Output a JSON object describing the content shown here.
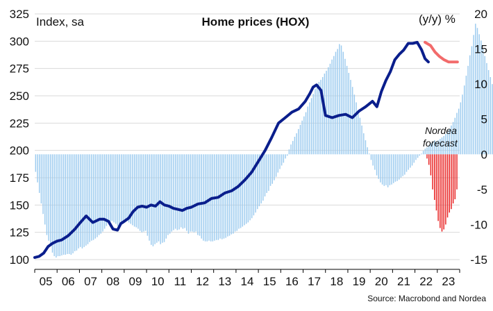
{
  "chart_data": {
    "type": "bar+line",
    "title": "Home prices (HOX)",
    "left_axis_label": "Index, sa",
    "right_axis_label": "(y/y) %",
    "annotation": "Nordea\nforecast",
    "source": "Source: Macrobond and Nordea",
    "left_ylim": [
      100,
      325
    ],
    "left_ticks": [
      "100",
      "125",
      "150",
      "175",
      "200",
      "225",
      "250",
      "275",
      "300",
      "325"
    ],
    "right_ylim": [
      -15,
      20
    ],
    "right_ticks": [
      "-15",
      "-10",
      "-5",
      "0",
      "5",
      "10",
      "15",
      "20"
    ],
    "x_ticks": [
      "05",
      "06",
      "07",
      "08",
      "09",
      "10",
      "11",
      "12",
      "13",
      "14",
      "15",
      "16",
      "17",
      "18",
      "19",
      "20",
      "21",
      "22",
      "23"
    ],
    "x_range": [
      2005.0,
      2024.0
    ],
    "grid": "horizontal",
    "colors": {
      "index_line": "#0a1e8c",
      "forecast_line": "#f26b6b",
      "yoy_bars": "#9ccbef",
      "forecast_bars": "#e81f1f"
    },
    "series": [
      {
        "name": "Index, sa",
        "axis": "left",
        "kind": "line",
        "x": [
          2005.0,
          2005.2,
          2005.4,
          2005.6,
          2005.8,
          2006.0,
          2006.2,
          2006.5,
          2006.8,
          2007.0,
          2007.3,
          2007.6,
          2007.9,
          2008.1,
          2008.3,
          2008.5,
          2008.7,
          2008.85,
          2009.0,
          2009.2,
          2009.4,
          2009.6,
          2009.8,
          2010.0,
          2010.2,
          2010.4,
          2010.6,
          2010.8,
          2011.0,
          2011.2,
          2011.4,
          2011.6,
          2011.8,
          2012.0,
          2012.3,
          2012.6,
          2012.9,
          2013.2,
          2013.5,
          2013.8,
          2014.1,
          2014.4,
          2014.7,
          2015.0,
          2015.3,
          2015.6,
          2015.9,
          2016.2,
          2016.5,
          2016.8,
          2017.1,
          2017.3,
          2017.45,
          2017.6,
          2017.8,
          2018.0,
          2018.3,
          2018.6,
          2018.9,
          2019.2,
          2019.5,
          2019.8,
          2020.1,
          2020.3,
          2020.5,
          2020.7,
          2020.9,
          2021.1,
          2021.3,
          2021.5,
          2021.7,
          2021.9,
          2022.1,
          2022.3,
          2022.45,
          2022.6
        ],
        "values": [
          102,
          103,
          106,
          112,
          115,
          117,
          118,
          122,
          128,
          133,
          140,
          134,
          137,
          137,
          135,
          128,
          127,
          133,
          135,
          138,
          144,
          148,
          149,
          148,
          150,
          149,
          153,
          150,
          149,
          147,
          146,
          145,
          147,
          148,
          151,
          152,
          156,
          157,
          161,
          163,
          167,
          173,
          180,
          190,
          200,
          212,
          225,
          230,
          235,
          238,
          245,
          252,
          258,
          260,
          255,
          232,
          230,
          232,
          233,
          230,
          236,
          240,
          245,
          240,
          254,
          264,
          272,
          283,
          288,
          292,
          298,
          298,
          299,
          292,
          284,
          281
        ]
      },
      {
        "name": "Index forecast",
        "axis": "left",
        "kind": "line",
        "x": [
          2022.45,
          2022.7,
          2022.9,
          2023.1,
          2023.3,
          2023.5,
          2023.7,
          2023.9
        ],
        "values": [
          299,
          296,
          290,
          286,
          283,
          281,
          281,
          281
        ]
      },
      {
        "name": "(y/y) %",
        "axis": "right",
        "kind": "bars",
        "x_start": 2005.0,
        "x_step": 0.0833333,
        "values": [
          -2.5,
          -4.0,
          -5.5,
          -7.0,
          -8.5,
          -10.0,
          -11.5,
          -12.3,
          -13.0,
          -14.0,
          -14.5,
          -14.7,
          -14.5,
          -14.5,
          -14.4,
          -14.3,
          -14.3,
          -14.2,
          -14.2,
          -14.3,
          -14.1,
          -13.8,
          -13.7,
          -13.4,
          -13.2,
          -13.4,
          -13.2,
          -13.0,
          -12.8,
          -12.5,
          -12.3,
          -12.2,
          -12.0,
          -11.8,
          -11.5,
          -11.3,
          -11.0,
          -10.6,
          -10.2,
          -9.8,
          -9.6,
          -9.5,
          -9.7,
          -9.9,
          -10.2,
          -10.0,
          -9.8,
          -9.9,
          -9.7,
          -9.5,
          -9.7,
          -9.9,
          -10.1,
          -10.3,
          -10.4,
          -10.6,
          -10.9,
          -11.1,
          -11.0,
          -10.9,
          -11.6,
          -12.3,
          -12.9,
          -13.1,
          -12.8,
          -12.6,
          -12.4,
          -12.8,
          -12.6,
          -12.5,
          -12.0,
          -11.5,
          -11.3,
          -11.0,
          -10.8,
          -10.6,
          -10.8,
          -10.7,
          -10.4,
          -10.6,
          -10.5,
          -10.9,
          -11.3,
          -11.0,
          -11.0,
          -11.1,
          -11.0,
          -11.5,
          -11.6,
          -12.0,
          -12.3,
          -12.4,
          -12.4,
          -12.3,
          -12.4,
          -12.4,
          -12.3,
          -12.2,
          -12.2,
          -12.0,
          -12.1,
          -12.0,
          -11.9,
          -11.7,
          -11.6,
          -11.4,
          -11.3,
          -11.0,
          -10.9,
          -10.6,
          -10.5,
          -10.3,
          -10.1,
          -9.9,
          -9.7,
          -9.4,
          -9.1,
          -8.7,
          -8.3,
          -7.8,
          -7.4,
          -7.0,
          -6.6,
          -6.0,
          -5.5,
          -5.2,
          -4.5,
          -4.2,
          -3.7,
          -3.2,
          -2.6,
          -2.1,
          -1.6,
          -1.2,
          -0.6,
          -0.2,
          0.7,
          1.4,
          1.9,
          2.5,
          3.0,
          3.6,
          4.2,
          4.8,
          5.4,
          6.0,
          6.8,
          7.4,
          8.0,
          8.6,
          9.3,
          9.7,
          10.3,
          10.6,
          11.0,
          11.5,
          11.9,
          12.4,
          12.9,
          13.5,
          14.0,
          14.6,
          15.0,
          15.7,
          15.5,
          14.6,
          13.6,
          12.6,
          11.6,
          10.6,
          9.6,
          8.5,
          7.4,
          6.3,
          5.2,
          4.1,
          3.0,
          2.0,
          1.0,
          0.1,
          -0.8,
          -1.6,
          -2.2,
          -3.0,
          -3.5,
          -4.0,
          -4.3,
          -4.5,
          -4.4,
          -4.7,
          -4.4,
          -4.3,
          -4.1,
          -3.9,
          -3.8,
          -3.6,
          -3.3,
          -3.1,
          -2.9,
          -2.5,
          -2.2,
          -1.9,
          -1.6,
          -1.2,
          -0.8,
          -0.5,
          -0.2,
          0.1,
          0.5,
          0.8,
          1.0,
          1.3,
          1.6,
          1.8,
          2.0,
          1.8,
          2.0,
          2.2,
          2.4,
          2.6,
          2.9,
          3.2,
          3.6,
          4.1,
          4.6,
          5.2,
          5.9,
          6.5,
          7.4,
          8.5,
          9.8,
          11.2,
          12.6,
          14.1,
          15.4,
          17.0,
          18.6,
          18.0,
          17.1,
          16.2,
          15.1,
          14.0,
          13.0,
          12.0,
          11.0,
          10.0,
          9.0,
          7.2,
          5.3,
          3.5
        ]
      },
      {
        "name": "(y/y) % forecast",
        "axis": "right",
        "kind": "bars",
        "x_start": 2022.5,
        "x_step": 0.0833333,
        "values": [
          -0.6,
          -1.5,
          -3.0,
          -5.0,
          -6.5,
          -8.0,
          -9.5,
          -10.5,
          -11.0,
          -10.7,
          -10.0,
          -9.0,
          -8.3,
          -7.8,
          -7.0,
          -6.4,
          -5.0
        ]
      }
    ]
  }
}
